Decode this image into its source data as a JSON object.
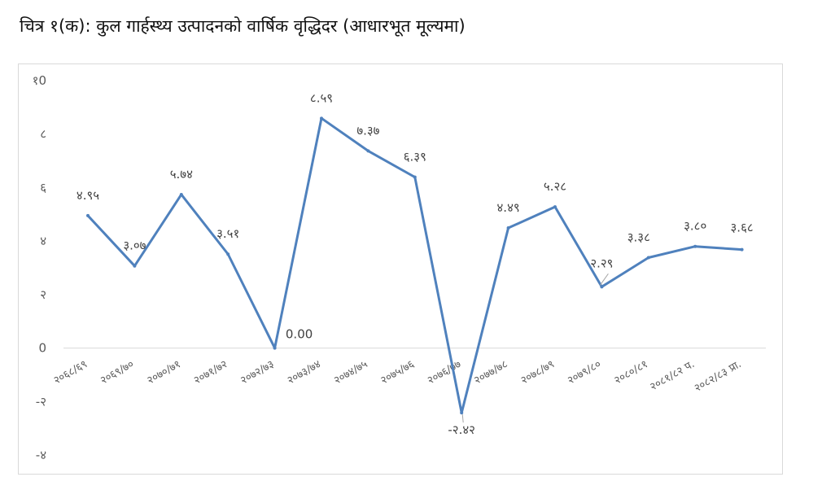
{
  "title": "चित्र १(क): कुल गार्हस्थ्य उत्पादनको वार्षिक वृद्धिदर  (आधारभूत मूल्यमा)",
  "chart_data": {
    "type": "line",
    "title": "चित्र १(क): कुल गार्हस्थ्य उत्पादनको वार्षिक वृद्धिदर  (आधारभूत मूल्यमा)",
    "xlabel": "",
    "ylabel": "",
    "categories": [
      "२०६८/६९",
      "२०६९/७०",
      "२०७०/७१",
      "२०७१/७२",
      "२०७२/७३",
      "२०७३/७४",
      "२०७४/७५",
      "२०७५/७६",
      "२०७६/७७",
      "२०७७/७८",
      "२०७८/७९",
      "२०७९/८०",
      "२०८०/८१",
      "२०८१/८२ प.",
      "२०८२/८३ प्रा."
    ],
    "values": [
      4.95,
      3.07,
      5.74,
      3.51,
      0.0,
      8.59,
      7.37,
      6.39,
      -2.42,
      4.49,
      5.28,
      2.29,
      3.38,
      3.8,
      3.68
    ],
    "value_labels": [
      "४.९५",
      "३.०७",
      "५.७४",
      "३.५१",
      "0.00",
      "८.५९",
      "७.३७",
      "६.३९",
      "-२.४२",
      "४.४९",
      "५.२८",
      "२.२९",
      "३.३८",
      "३.८०",
      "३.६८"
    ],
    "yticks": [
      10,
      8,
      6,
      4,
      2,
      0,
      -2,
      -4
    ],
    "ytick_labels": [
      "१0",
      "८",
      "६",
      "४",
      "२",
      "0",
      "-२",
      "-४"
    ],
    "ylim": [
      -4,
      10
    ],
    "grid": false,
    "legend": "none",
    "line_color": "#4f81bd"
  }
}
